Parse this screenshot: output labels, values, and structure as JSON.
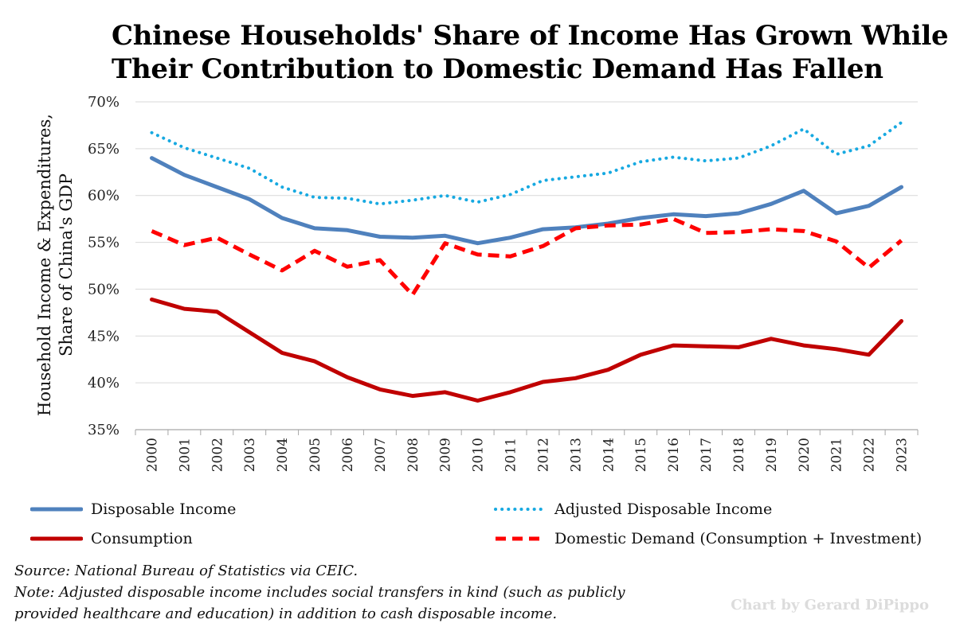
{
  "title_lines": [
    "Chinese Households' Share of Income Has Grown While",
    "Their Contribution to Domestic Demand Has Fallen"
  ],
  "ylabel_lines": [
    "Household Income & Expenditures,",
    "Share of China's GDP"
  ],
  "source": "Source: National Bureau of Statistics via CEIC.",
  "note_lines": [
    "Note: Adjusted disposable income includes social transfers in kind (such as publicly",
    "provided healthcare and education) in addition to cash disposable income."
  ],
  "credit": "Chart by Gerard DiPippo",
  "chart_data": {
    "type": "line",
    "title": "Chinese Households' Share of Income Has Grown While Their Contribution to Domestic Demand Has Fallen",
    "xlabel": "",
    "ylabel": "Household Income & Expenditures, Share of China's GDP",
    "ylim": [
      35,
      70
    ],
    "yticks": [
      35,
      40,
      45,
      50,
      55,
      60,
      65,
      70
    ],
    "ytick_labels": [
      "35%",
      "40%",
      "45%",
      "50%",
      "55%",
      "60%",
      "65%",
      "70%"
    ],
    "grid": "horizontal",
    "legend_position": "bottom",
    "categories": [
      "2000",
      "2001",
      "2002",
      "2003",
      "2004",
      "2005",
      "2006",
      "2007",
      "2008",
      "2009",
      "2010",
      "2011",
      "2012",
      "2013",
      "2014",
      "2015",
      "2016",
      "2017",
      "2018",
      "2019",
      "2020",
      "2021",
      "2022",
      "2023"
    ],
    "series": [
      {
        "name": "Disposable Income",
        "color": "#4F81BD",
        "style": "solid",
        "values": [
          64.0,
          62.2,
          60.9,
          59.6,
          57.6,
          56.5,
          56.3,
          55.6,
          55.5,
          55.7,
          54.9,
          55.5,
          56.4,
          56.6,
          57.0,
          57.6,
          58.0,
          57.8,
          58.1,
          59.1,
          60.5,
          58.1,
          58.9,
          60.9
        ]
      },
      {
        "name": "Adjusted Disposable Income",
        "color": "#17A9E1",
        "style": "dotted",
        "values": [
          66.7,
          65.1,
          64.0,
          62.9,
          60.9,
          59.8,
          59.7,
          59.1,
          59.5,
          60.0,
          59.3,
          60.1,
          61.6,
          62.0,
          62.4,
          63.6,
          64.1,
          63.7,
          64.0,
          65.3,
          67.1,
          64.4,
          65.3,
          67.8
        ]
      },
      {
        "name": "Consumption",
        "color": "#C00000",
        "style": "solid",
        "values": [
          48.9,
          47.9,
          47.6,
          45.4,
          43.2,
          42.3,
          40.6,
          39.3,
          38.6,
          39.0,
          38.1,
          39.0,
          40.1,
          40.5,
          41.4,
          43.0,
          44.0,
          43.9,
          43.8,
          44.7,
          44.0,
          43.6,
          43.0,
          46.6
        ]
      },
      {
        "name": "Domestic Demand (Consumption + Investment)",
        "color": "#FF0000",
        "style": "dashed",
        "values": [
          56.2,
          54.7,
          55.5,
          53.7,
          52.0,
          54.1,
          52.4,
          53.1,
          49.4,
          54.9,
          53.7,
          53.5,
          54.6,
          56.5,
          56.8,
          56.9,
          57.5,
          56.0,
          56.1,
          56.4,
          56.2,
          55.1,
          52.3,
          55.2
        ]
      }
    ]
  }
}
